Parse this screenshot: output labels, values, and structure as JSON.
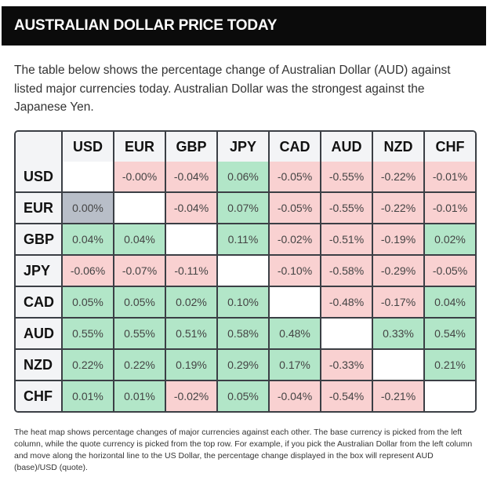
{
  "title": "AUSTRALIAN DOLLAR PRICE TODAY",
  "intro": "The table below shows the percentage change of Australian Dollar (AUD) against listed major currencies today. Australian Dollar was the strongest against the Japanese Yen.",
  "columns": [
    "USD",
    "EUR",
    "GBP",
    "JPY",
    "CAD",
    "AUD",
    "NZD",
    "CHF"
  ],
  "rows": [
    {
      "currency": "USD",
      "values": [
        "",
        "-0.00%",
        "-0.04%",
        "0.06%",
        "-0.05%",
        "-0.55%",
        "-0.22%",
        "-0.01%"
      ]
    },
    {
      "currency": "EUR",
      "values": [
        "0.00%",
        "",
        "-0.04%",
        "0.07%",
        "-0.05%",
        "-0.55%",
        "-0.22%",
        "-0.01%"
      ]
    },
    {
      "currency": "GBP",
      "values": [
        "0.04%",
        "0.04%",
        "",
        "0.11%",
        "-0.02%",
        "-0.51%",
        "-0.19%",
        "0.02%"
      ]
    },
    {
      "currency": "JPY",
      "values": [
        "-0.06%",
        "-0.07%",
        "-0.11%",
        "",
        "-0.10%",
        "-0.58%",
        "-0.29%",
        "-0.05%"
      ]
    },
    {
      "currency": "CAD",
      "values": [
        "0.05%",
        "0.05%",
        "0.02%",
        "0.10%",
        "",
        "-0.48%",
        "-0.17%",
        "0.04%"
      ]
    },
    {
      "currency": "AUD",
      "values": [
        "0.55%",
        "0.55%",
        "0.51%",
        "0.58%",
        "0.48%",
        "",
        "0.33%",
        "0.54%"
      ]
    },
    {
      "currency": "NZD",
      "values": [
        "0.22%",
        "0.22%",
        "0.19%",
        "0.29%",
        "0.17%",
        "-0.33%",
        "",
        "0.21%"
      ]
    },
    {
      "currency": "CHF",
      "values": [
        "0.01%",
        "0.01%",
        "-0.02%",
        "0.05%",
        "-0.04%",
        "-0.54%",
        "-0.21%",
        ""
      ]
    }
  ],
  "colors": {
    "positive": "#b2e6c8",
    "negative": "#f9d1d1",
    "neutral": "#b8bec8"
  },
  "footnote": "The heat map shows percentage changes of major currencies against each other. The base currency is picked from the left column, while the quote currency is picked from the top row. For example, if you pick the Australian Dollar from the left column and move along the horizontal line to the US Dollar, the percentage change displayed in the box will represent AUD (base)/USD (quote)."
}
